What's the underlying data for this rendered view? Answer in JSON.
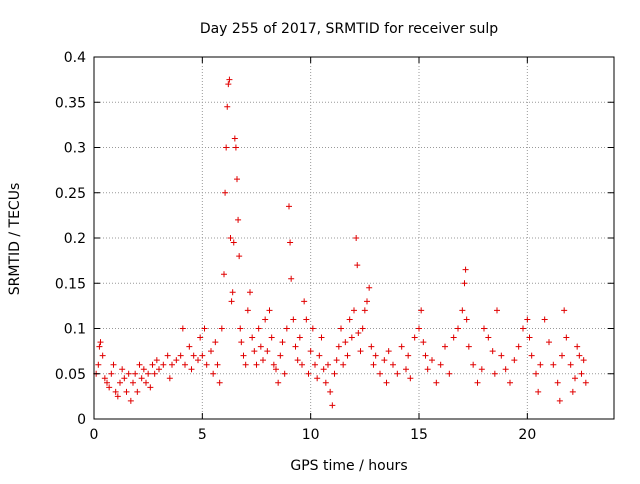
{
  "chart_data": {
    "type": "scatter",
    "title": "Day 255 of 2017, SRMTID for receiver sulp",
    "xlabel": "GPS time / hours",
    "ylabel": "SRMTID / TECUs",
    "xlim": [
      0,
      24
    ],
    "ylim": [
      0,
      0.4
    ],
    "x_ticks": [
      0,
      5,
      10,
      15,
      20
    ],
    "x_tick_labels": [
      "0",
      "5",
      "10",
      "15",
      "20"
    ],
    "y_ticks": [
      0,
      0.05,
      0.1,
      0.15,
      0.2,
      0.25,
      0.3,
      0.35,
      0.4
    ],
    "y_tick_labels": [
      "0",
      "0.05",
      "0.1",
      "0.15",
      "0.2",
      "0.25",
      "0.3",
      "0.35",
      "0.4"
    ],
    "grid": true,
    "marker": "+",
    "marker_color": "#e00000",
    "series": [
      {
        "name": "SRMTID",
        "points": [
          [
            0.1,
            0.05
          ],
          [
            0.2,
            0.06
          ],
          [
            0.25,
            0.08
          ],
          [
            0.3,
            0.085
          ],
          [
            0.4,
            0.07
          ],
          [
            0.5,
            0.045
          ],
          [
            0.6,
            0.04
          ],
          [
            0.7,
            0.035
          ],
          [
            0.8,
            0.05
          ],
          [
            0.9,
            0.06
          ],
          [
            1.0,
            0.03
          ],
          [
            1.1,
            0.025
          ],
          [
            1.2,
            0.04
          ],
          [
            1.3,
            0.055
          ],
          [
            1.4,
            0.045
          ],
          [
            1.5,
            0.03
          ],
          [
            1.6,
            0.05
          ],
          [
            1.7,
            0.02
          ],
          [
            1.8,
            0.04
          ],
          [
            1.9,
            0.05
          ],
          [
            2.0,
            0.03
          ],
          [
            2.1,
            0.06
          ],
          [
            2.2,
            0.045
          ],
          [
            2.3,
            0.055
          ],
          [
            2.4,
            0.04
          ],
          [
            2.5,
            0.05
          ],
          [
            2.6,
            0.035
          ],
          [
            2.7,
            0.06
          ],
          [
            2.8,
            0.05
          ],
          [
            2.9,
            0.065
          ],
          [
            3.0,
            0.055
          ],
          [
            3.2,
            0.06
          ],
          [
            3.4,
            0.07
          ],
          [
            3.5,
            0.045
          ],
          [
            3.6,
            0.06
          ],
          [
            3.8,
            0.065
          ],
          [
            4.0,
            0.07
          ],
          [
            4.1,
            0.1
          ],
          [
            4.2,
            0.06
          ],
          [
            4.4,
            0.08
          ],
          [
            4.5,
            0.055
          ],
          [
            4.6,
            0.07
          ],
          [
            4.8,
            0.065
          ],
          [
            4.9,
            0.09
          ],
          [
            5.0,
            0.07
          ],
          [
            5.1,
            0.1
          ],
          [
            5.2,
            0.06
          ],
          [
            5.4,
            0.075
          ],
          [
            5.5,
            0.05
          ],
          [
            5.6,
            0.085
          ],
          [
            5.7,
            0.06
          ],
          [
            5.8,
            0.04
          ],
          [
            5.9,
            0.1
          ],
          [
            6.0,
            0.16
          ],
          [
            6.05,
            0.25
          ],
          [
            6.1,
            0.3
          ],
          [
            6.15,
            0.345
          ],
          [
            6.2,
            0.37
          ],
          [
            6.25,
            0.375
          ],
          [
            6.3,
            0.2
          ],
          [
            6.35,
            0.13
          ],
          [
            6.4,
            0.14
          ],
          [
            6.45,
            0.195
          ],
          [
            6.5,
            0.31
          ],
          [
            6.55,
            0.3
          ],
          [
            6.6,
            0.265
          ],
          [
            6.65,
            0.22
          ],
          [
            6.7,
            0.18
          ],
          [
            6.75,
            0.1
          ],
          [
            6.8,
            0.085
          ],
          [
            6.9,
            0.07
          ],
          [
            7.0,
            0.06
          ],
          [
            7.1,
            0.12
          ],
          [
            7.2,
            0.14
          ],
          [
            7.3,
            0.09
          ],
          [
            7.4,
            0.075
          ],
          [
            7.5,
            0.06
          ],
          [
            7.6,
            0.1
          ],
          [
            7.7,
            0.08
          ],
          [
            7.8,
            0.065
          ],
          [
            7.9,
            0.11
          ],
          [
            8.0,
            0.075
          ],
          [
            8.1,
            0.12
          ],
          [
            8.2,
            0.09
          ],
          [
            8.3,
            0.06
          ],
          [
            8.4,
            0.055
          ],
          [
            8.5,
            0.04
          ],
          [
            8.6,
            0.07
          ],
          [
            8.7,
            0.085
          ],
          [
            8.8,
            0.05
          ],
          [
            8.9,
            0.1
          ],
          [
            9.0,
            0.235
          ],
          [
            9.05,
            0.195
          ],
          [
            9.1,
            0.155
          ],
          [
            9.2,
            0.11
          ],
          [
            9.3,
            0.08
          ],
          [
            9.4,
            0.065
          ],
          [
            9.5,
            0.09
          ],
          [
            9.6,
            0.06
          ],
          [
            9.7,
            0.13
          ],
          [
            9.8,
            0.11
          ],
          [
            9.9,
            0.05
          ],
          [
            10.0,
            0.075
          ],
          [
            10.1,
            0.1
          ],
          [
            10.2,
            0.06
          ],
          [
            10.3,
            0.045
          ],
          [
            10.4,
            0.07
          ],
          [
            10.5,
            0.09
          ],
          [
            10.6,
            0.055
          ],
          [
            10.7,
            0.04
          ],
          [
            10.8,
            0.06
          ],
          [
            10.9,
            0.03
          ],
          [
            11.0,
            0.015
          ],
          [
            11.1,
            0.05
          ],
          [
            11.2,
            0.065
          ],
          [
            11.3,
            0.08
          ],
          [
            11.4,
            0.1
          ],
          [
            11.5,
            0.06
          ],
          [
            11.6,
            0.085
          ],
          [
            11.7,
            0.07
          ],
          [
            11.8,
            0.11
          ],
          [
            11.9,
            0.09
          ],
          [
            12.0,
            0.12
          ],
          [
            12.1,
            0.2
          ],
          [
            12.15,
            0.17
          ],
          [
            12.2,
            0.095
          ],
          [
            12.3,
            0.075
          ],
          [
            12.4,
            0.1
          ],
          [
            12.5,
            0.12
          ],
          [
            12.6,
            0.13
          ],
          [
            12.7,
            0.145
          ],
          [
            12.8,
            0.08
          ],
          [
            12.9,
            0.06
          ],
          [
            13.0,
            0.07
          ],
          [
            13.2,
            0.05
          ],
          [
            13.4,
            0.065
          ],
          [
            13.5,
            0.04
          ],
          [
            13.6,
            0.075
          ],
          [
            13.8,
            0.06
          ],
          [
            14.0,
            0.05
          ],
          [
            14.2,
            0.08
          ],
          [
            14.4,
            0.055
          ],
          [
            14.5,
            0.07
          ],
          [
            14.6,
            0.045
          ],
          [
            14.8,
            0.09
          ],
          [
            15.0,
            0.1
          ],
          [
            15.1,
            0.12
          ],
          [
            15.2,
            0.085
          ],
          [
            15.3,
            0.07
          ],
          [
            15.4,
            0.055
          ],
          [
            15.6,
            0.065
          ],
          [
            15.8,
            0.04
          ],
          [
            16.0,
            0.06
          ],
          [
            16.2,
            0.08
          ],
          [
            16.4,
            0.05
          ],
          [
            16.6,
            0.09
          ],
          [
            16.8,
            0.1
          ],
          [
            17.0,
            0.12
          ],
          [
            17.1,
            0.15
          ],
          [
            17.15,
            0.165
          ],
          [
            17.2,
            0.11
          ],
          [
            17.3,
            0.08
          ],
          [
            17.5,
            0.06
          ],
          [
            17.7,
            0.04
          ],
          [
            17.9,
            0.055
          ],
          [
            18.0,
            0.1
          ],
          [
            18.2,
            0.09
          ],
          [
            18.4,
            0.075
          ],
          [
            18.5,
            0.05
          ],
          [
            18.6,
            0.12
          ],
          [
            18.8,
            0.07
          ],
          [
            19.0,
            0.055
          ],
          [
            19.2,
            0.04
          ],
          [
            19.4,
            0.065
          ],
          [
            19.6,
            0.08
          ],
          [
            19.8,
            0.1
          ],
          [
            20.0,
            0.11
          ],
          [
            20.1,
            0.09
          ],
          [
            20.2,
            0.07
          ],
          [
            20.4,
            0.05
          ],
          [
            20.5,
            0.03
          ],
          [
            20.6,
            0.06
          ],
          [
            20.8,
            0.11
          ],
          [
            21.0,
            0.085
          ],
          [
            21.2,
            0.06
          ],
          [
            21.4,
            0.04
          ],
          [
            21.5,
            0.02
          ],
          [
            21.6,
            0.07
          ],
          [
            21.7,
            0.12
          ],
          [
            21.8,
            0.09
          ],
          [
            22.0,
            0.06
          ],
          [
            22.1,
            0.03
          ],
          [
            22.2,
            0.045
          ],
          [
            22.3,
            0.08
          ],
          [
            22.4,
            0.07
          ],
          [
            22.5,
            0.05
          ],
          [
            22.6,
            0.065
          ],
          [
            22.7,
            0.04
          ]
        ]
      }
    ]
  }
}
